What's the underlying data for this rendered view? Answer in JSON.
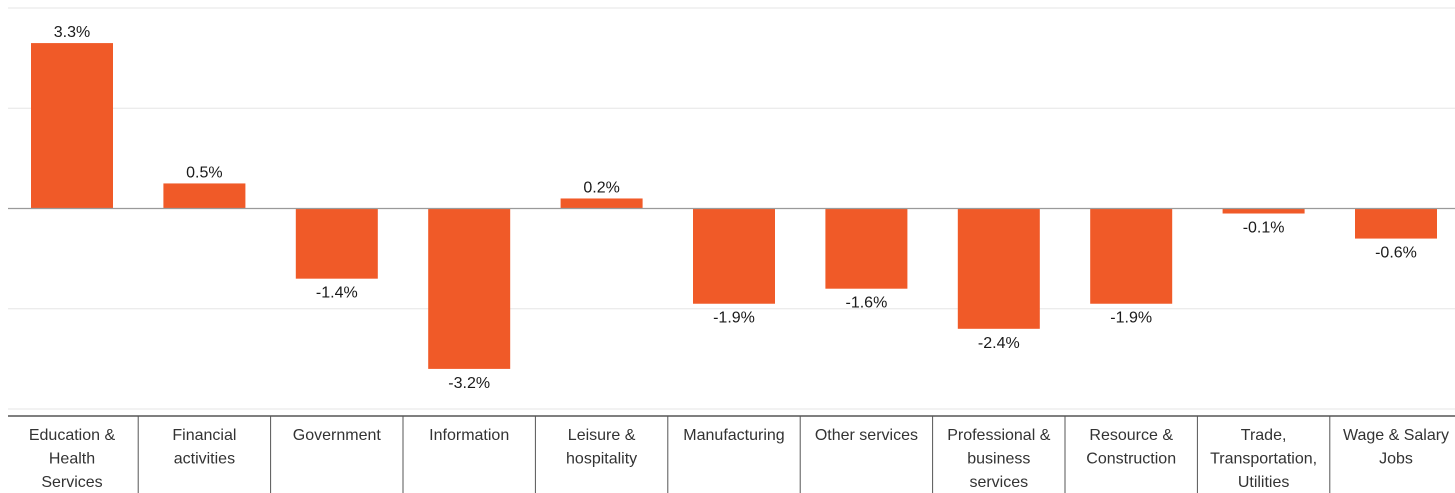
{
  "chart_data": {
    "type": "bar",
    "categories": [
      [
        "Education &",
        "Health",
        "Services"
      ],
      [
        "Financial",
        "activities"
      ],
      [
        "Government"
      ],
      [
        "Information"
      ],
      [
        "Leisure &",
        "hospitality"
      ],
      [
        "Manufacturing"
      ],
      [
        "Other services"
      ],
      [
        "Professional &",
        "business",
        "services"
      ],
      [
        "Resource &",
        "Construction"
      ],
      [
        "Trade,",
        "Transportation,",
        "Utilities"
      ],
      [
        "Wage & Salary",
        "Jobs"
      ]
    ],
    "values": [
      3.3,
      0.5,
      -1.4,
      -3.2,
      0.2,
      -1.9,
      -1.6,
      -2.4,
      -1.9,
      -0.1,
      -0.6
    ],
    "value_labels": [
      "3.3%",
      "0.5%",
      "-1.4%",
      "-3.2%",
      "0.2%",
      "-1.9%",
      "-1.6%",
      "-2.4%",
      "-1.9%",
      "-0.1%",
      "-0.6%"
    ],
    "ylim": [
      -4,
      4
    ],
    "gridlines": [
      4,
      2,
      0,
      -2,
      -4
    ],
    "grid": true,
    "legend": "none",
    "bar_color": "#f05a28"
  }
}
